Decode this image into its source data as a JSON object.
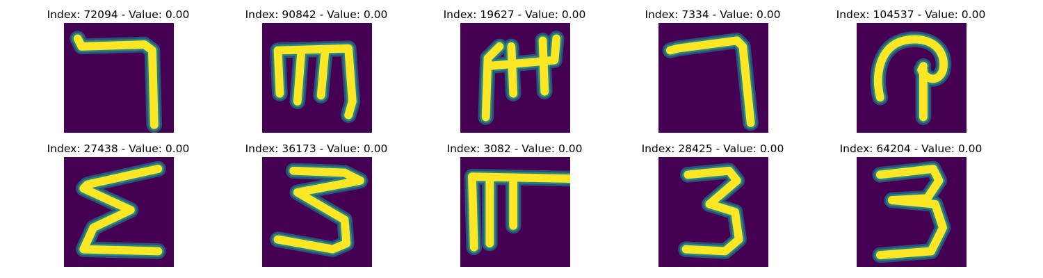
{
  "colors": {
    "background": "#440154",
    "stroke_edge": "#21918c",
    "stroke_core": "#fde725"
  },
  "panels": [
    {
      "title": "Index: 72094 - Value: 0.00",
      "glyph": "hook"
    },
    {
      "title": "Index: 90842 - Value: 0.00",
      "glyph": "m-shape"
    },
    {
      "title": "Index: 19627 - Value: 0.00",
      "glyph": "w-shape"
    },
    {
      "title": "Index: 7334 - Value: 0.00",
      "glyph": "hook"
    },
    {
      "title": "Index: 104537 - Value: 0.00",
      "glyph": "loop"
    },
    {
      "title": "Index: 27438 - Value: 0.00",
      "glyph": "sigma"
    },
    {
      "title": "Index: 36173 - Value: 0.00",
      "glyph": "reverse-sigma"
    },
    {
      "title": "Index: 3082 - Value: 0.00",
      "glyph": "pi-shape"
    },
    {
      "title": "Index: 28425 - Value: 0.00",
      "glyph": "three"
    },
    {
      "title": "Index: 64204 - Value: 0.00",
      "glyph": "three"
    }
  ]
}
